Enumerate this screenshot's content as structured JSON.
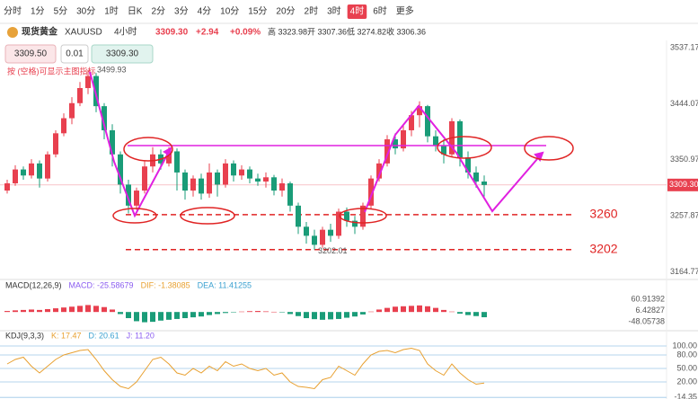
{
  "toolbar": {
    "intervals": [
      "分时",
      "1分",
      "5分",
      "30分",
      "1时",
      "日K",
      "2分",
      "3分",
      "4分",
      "10分",
      "15分",
      "20分",
      "2时",
      "3时",
      "4时",
      "6时",
      "更多"
    ],
    "active": 14
  },
  "header": {
    "name": "现货黄金",
    "symbol": "XAUUSD",
    "period": "4小时",
    "price": "3309.30",
    "change": "+2.94",
    "change_pct": "+0.09%",
    "high": "高 3323.98",
    "open": "开 3307.36",
    "low": "低 3274.82",
    "close": "收 3306.36",
    "bid": "3309.50",
    "lot": "0.01",
    "ask": "3309.30",
    "hint": "按 (空格)可显示主图指标"
  },
  "chart_data": {
    "type": "candlestick",
    "candles": [
      [
        3300,
        3318,
        3295,
        3312
      ],
      [
        3312,
        3342,
        3308,
        3335
      ],
      [
        3335,
        3340,
        3318,
        3325
      ],
      [
        3325,
        3352,
        3320,
        3345
      ],
      [
        3345,
        3350,
        3305,
        3320
      ],
      [
        3320,
        3365,
        3315,
        3360
      ],
      [
        3360,
        3400,
        3355,
        3395
      ],
      [
        3395,
        3428,
        3390,
        3420
      ],
      [
        3420,
        3455,
        3410,
        3445
      ],
      [
        3445,
        3480,
        3440,
        3470
      ],
      [
        3470,
        3499.93,
        3460,
        3490
      ],
      [
        3490,
        3495,
        3430,
        3440
      ],
      [
        3440,
        3445,
        3385,
        3400
      ],
      [
        3400,
        3410,
        3340,
        3360
      ],
      [
        3360,
        3365,
        3295,
        3310
      ],
      [
        3310,
        3318,
        3262,
        3275
      ],
      [
        3275,
        3305,
        3268,
        3300
      ],
      [
        3300,
        3350,
        3295,
        3340
      ],
      [
        3340,
        3372,
        3330,
        3360
      ],
      [
        3360,
        3368,
        3335,
        3345
      ],
      [
        3345,
        3372,
        3340,
        3365
      ],
      [
        3365,
        3370,
        3300,
        3330
      ],
      [
        3330,
        3335,
        3285,
        3300
      ],
      [
        3300,
        3325,
        3290,
        3320
      ],
      [
        3320,
        3328,
        3285,
        3295
      ],
      [
        3295,
        3345,
        3288,
        3330
      ],
      [
        3330,
        3335,
        3290,
        3310
      ],
      [
        3310,
        3352,
        3305,
        3345
      ],
      [
        3345,
        3350,
        3315,
        3325
      ],
      [
        3325,
        3342,
        3318,
        3335
      ],
      [
        3335,
        3340,
        3312,
        3320
      ],
      [
        3320,
        3328,
        3308,
        3315
      ],
      [
        3315,
        3330,
        3305,
        3322
      ],
      [
        3322,
        3326,
        3292,
        3300
      ],
      [
        3300,
        3320,
        3290,
        3312
      ],
      [
        3312,
        3315,
        3265,
        3275
      ],
      [
        3275,
        3280,
        3228,
        3240
      ],
      [
        3240,
        3248,
        3212,
        3225
      ],
      [
        3225,
        3235,
        3202.01,
        3210
      ],
      [
        3210,
        3240,
        3205,
        3235
      ],
      [
        3235,
        3245,
        3215,
        3225
      ],
      [
        3225,
        3270,
        3220,
        3265
      ],
      [
        3265,
        3272,
        3240,
        3250
      ],
      [
        3250,
        3258,
        3228,
        3240
      ],
      [
        3240,
        3280,
        3235,
        3275
      ],
      [
        3275,
        3325,
        3270,
        3320
      ],
      [
        3320,
        3352,
        3315,
        3345
      ],
      [
        3345,
        3392,
        3340,
        3385
      ],
      [
        3385,
        3395,
        3360,
        3370
      ],
      [
        3370,
        3410,
        3365,
        3400
      ],
      [
        3400,
        3432,
        3390,
        3425
      ],
      [
        3425,
        3448,
        3405,
        3440
      ],
      [
        3440,
        3442,
        3380,
        3390
      ],
      [
        3390,
        3400,
        3365,
        3375
      ],
      [
        3375,
        3385,
        3345,
        3360
      ],
      [
        3360,
        3420,
        3355,
        3415
      ],
      [
        3415,
        3418,
        3340,
        3355
      ],
      [
        3355,
        3365,
        3320,
        3330
      ],
      [
        3330,
        3340,
        3305,
        3315
      ],
      [
        3315,
        3325,
        3290,
        3309.3
      ]
    ],
    "ylim": [
      3157,
      3549
    ],
    "yticks": [
      3537.17,
      3444.07,
      3350.97,
      3257.87,
      3164.77
    ],
    "current": {
      "value": 3309.3,
      "label": "3309.30"
    },
    "levels": [
      3260,
      3202
    ],
    "up_color": "#e8404f",
    "down_color": "#1a9c78"
  },
  "macd": {
    "title": "MACD(12,26,9)",
    "macd": "MACD: -25.58679",
    "dif": "DIF: -1.38085",
    "dea": "DEA: 11.41255",
    "hist": [
      5,
      8,
      10,
      12,
      10,
      14,
      18,
      22,
      26,
      30,
      34,
      30,
      24,
      12,
      -10,
      -30,
      -45,
      -50,
      -48,
      -42,
      -38,
      -34,
      -30,
      -26,
      -22,
      -15,
      -10,
      -5,
      -2,
      2,
      4,
      5,
      3,
      1,
      -2,
      -10,
      -20,
      -30,
      -35,
      -38,
      -36,
      -34,
      -28,
      -22,
      -12,
      2,
      12,
      20,
      26,
      28,
      30,
      32,
      28,
      20,
      10,
      2,
      -8,
      -15,
      -20,
      -25.58679
    ],
    "ylim": [
      -65,
      128
    ],
    "yticks": [
      60.91392,
      6.42827,
      -48.05738
    ]
  },
  "kdj": {
    "title": "KDJ(9,3,3)",
    "k_label": "K: 17.47",
    "d_label": "D: 20.61",
    "j_label": "J: 11.20",
    "k": [
      60,
      70,
      75,
      55,
      40,
      55,
      70,
      80,
      85,
      90,
      92,
      70,
      45,
      25,
      10,
      5,
      20,
      45,
      70,
      75,
      60,
      40,
      35,
      50,
      40,
      55,
      45,
      65,
      55,
      60,
      50,
      45,
      50,
      35,
      40,
      20,
      10,
      8,
      5,
      25,
      30,
      55,
      45,
      35,
      60,
      80,
      88,
      90,
      85,
      92,
      95,
      90,
      60,
      45,
      35,
      60,
      40,
      25,
      15,
      17.47
    ],
    "ylim": [
      -18,
      114
    ],
    "yticks": [
      {
        "value": 100,
        "label": "100.00"
      },
      {
        "value": 80,
        "label": "80.00"
      },
      {
        "value": 50,
        "label": "50.00"
      },
      {
        "value": 20,
        "label": "20.00"
      },
      -14.35
    ]
  }
}
